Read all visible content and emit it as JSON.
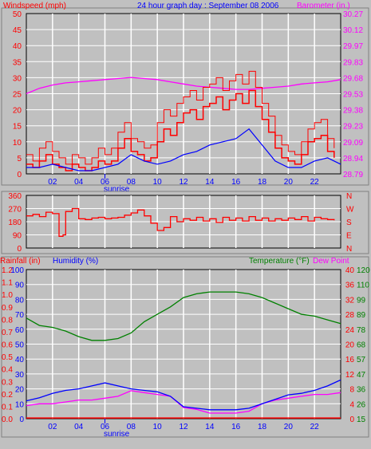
{
  "colors": {
    "background": "#c0c0c0",
    "plot_bg": "#c0c0c0",
    "grid": "#ffffff",
    "wind": "#ff0000",
    "gust": "#ff0000",
    "wind_avg": "#0000ff",
    "barometer": "#ff00ff",
    "direction": "#ff0000",
    "rain": "#ff0000",
    "humidity": "#0000ff",
    "temperature": "#008000",
    "dewpoint": "#ff00ff",
    "sunrise": "#0000ff"
  },
  "chart_data": [
    {
      "type": "line",
      "title": "24 hour graph day : September 08 2006",
      "left_axis_label": "Windspeed (mph)",
      "right_axis_label": "Barometer (in.)",
      "x_ticks": [
        "02",
        "04",
        "06",
        "08",
        "10",
        "12",
        "14",
        "16",
        "18",
        "20",
        "22"
      ],
      "sunrise_label": "sunrise",
      "sunrise_hour": 6,
      "left_ticks": [
        "0",
        "5",
        "10",
        "15",
        "20",
        "25",
        "30",
        "35",
        "40",
        "45",
        "50"
      ],
      "right_ticks": [
        "28.79",
        "28.94",
        "29.09",
        "29.23",
        "29.38",
        "29.53",
        "29.68",
        "29.83",
        "29.97",
        "30.12",
        "30.27"
      ],
      "ylim_left": [
        0,
        50
      ],
      "ylim_right": [
        28.79,
        30.27
      ],
      "xlim": [
        0,
        24
      ],
      "series": [
        {
          "name": "Windspeed (mph)",
          "axis": "left",
          "x": [
            0,
            0.5,
            1,
            1.5,
            2,
            2.5,
            3,
            3.5,
            4,
            4.5,
            5,
            5.5,
            6,
            6.5,
            7,
            7.5,
            8,
            8.5,
            9,
            9.5,
            10,
            10.5,
            11,
            11.5,
            12,
            12.5,
            13,
            13.5,
            14,
            14.5,
            15,
            15.5,
            16,
            16.5,
            17,
            17.5,
            18,
            18.5,
            19,
            19.5,
            20,
            20.5,
            21,
            21.5,
            22,
            22.5,
            23,
            23.5
          ],
          "values": [
            3,
            2,
            4,
            6,
            3,
            2,
            1,
            3,
            2,
            1,
            2,
            4,
            3,
            4,
            8,
            11,
            7,
            6,
            4,
            5,
            10,
            14,
            12,
            16,
            19,
            20,
            17,
            21,
            22,
            24,
            20,
            23,
            25,
            22,
            26,
            21,
            17,
            13,
            8,
            5,
            4,
            3,
            6,
            10,
            11,
            12,
            7,
            5
          ],
          "gust_values": [
            6,
            4,
            8,
            10,
            7,
            5,
            3,
            6,
            5,
            3,
            5,
            8,
            6,
            8,
            13,
            16,
            11,
            10,
            8,
            9,
            16,
            20,
            18,
            22,
            24,
            26,
            23,
            27,
            28,
            30,
            26,
            29,
            31,
            28,
            32,
            27,
            22,
            18,
            12,
            9,
            7,
            6,
            10,
            14,
            16,
            17,
            11,
            8
          ]
        },
        {
          "name": "Wind avg",
          "axis": "left",
          "x": [
            0,
            1,
            2,
            3,
            4,
            5,
            6,
            7,
            8,
            9,
            10,
            11,
            12,
            13,
            14,
            15,
            16,
            17,
            18,
            19,
            20,
            21,
            22,
            23,
            24
          ],
          "values": [
            2,
            2,
            3,
            2,
            1,
            1,
            2,
            3,
            6,
            4,
            3,
            4,
            6,
            7,
            9,
            10,
            11,
            14,
            9,
            4,
            2,
            2,
            4,
            5,
            3
          ]
        },
        {
          "name": "Barometer (in.)",
          "axis": "right",
          "x": [
            0,
            1,
            2,
            3,
            4,
            5,
            6,
            7,
            8,
            9,
            10,
            11,
            12,
            13,
            14,
            15,
            16,
            17,
            18,
            19,
            20,
            21,
            22,
            23,
            24
          ],
          "values": [
            29.53,
            29.58,
            29.61,
            29.63,
            29.64,
            29.65,
            29.66,
            29.67,
            29.68,
            29.67,
            29.66,
            29.64,
            29.62,
            29.6,
            29.59,
            29.58,
            29.57,
            29.57,
            29.58,
            29.59,
            29.6,
            29.62,
            29.63,
            29.64,
            29.66
          ]
        }
      ]
    },
    {
      "type": "line",
      "left_ticks": [
        "0",
        "90",
        "180",
        "270",
        "360"
      ],
      "right_ticks": [
        "N",
        "E",
        "S",
        "W",
        "N"
      ],
      "ylim": [
        0,
        360
      ],
      "xlim": [
        0,
        24
      ],
      "series": [
        {
          "name": "Wind direction",
          "x": [
            0,
            0.5,
            1,
            1.5,
            2,
            2.5,
            2.8,
            3,
            3.5,
            4,
            4.5,
            5,
            5.5,
            6,
            6.5,
            7,
            7.5,
            8,
            8.5,
            9,
            9.5,
            10,
            10.5,
            11,
            11.5,
            12,
            12.5,
            13,
            13.5,
            14,
            14.5,
            15,
            15.5,
            16,
            16.5,
            17,
            17.5,
            18,
            18.5,
            19,
            19.5,
            20,
            20.5,
            21,
            21.5,
            22,
            22.5,
            23,
            23.5
          ],
          "values": [
            220,
            230,
            215,
            245,
            235,
            80,
            90,
            250,
            270,
            200,
            195,
            205,
            210,
            200,
            205,
            210,
            225,
            240,
            260,
            220,
            170,
            120,
            140,
            215,
            180,
            200,
            190,
            210,
            185,
            200,
            175,
            210,
            190,
            205,
            185,
            215,
            190,
            205,
            185,
            200,
            190,
            205,
            195,
            215,
            185,
            210,
            200,
            195,
            190
          ]
        }
      ]
    },
    {
      "type": "line",
      "left_axis_label_1": "Rainfall (in)",
      "left_axis_label_2": "Humidity (%)",
      "right_axis_label_1": "Temperature (°F)",
      "right_axis_label_2": "Dew Point",
      "x_ticks": [
        "02",
        "04",
        "06",
        "08",
        "10",
        "12",
        "14",
        "16",
        "18",
        "20",
        "22"
      ],
      "sunrise_label": "sunrise",
      "sunrise_hour": 6,
      "rain_ticks": [
        "0.0",
        "0.1",
        "0.2",
        "0.3",
        "0.4",
        "0.5",
        "0.6",
        "0.7",
        "0.8",
        "0.9",
        "1.0",
        "1.1",
        "1.2"
      ],
      "humidity_ticks": [
        "0",
        "10",
        "20",
        "30",
        "40",
        "50",
        "60",
        "70",
        "80",
        "90",
        "100"
      ],
      "celsius_ticks": [
        "0",
        "4",
        "8",
        "12",
        "16",
        "20",
        "24",
        "28",
        "32",
        "36",
        "40"
      ],
      "fahrenheit_ticks": [
        "15",
        "26",
        "36",
        "47",
        "57",
        "68",
        "78",
        "89",
        "99",
        "110",
        "120"
      ],
      "ylim_humidity": [
        0,
        100
      ],
      "ylim_celsius": [
        0,
        40
      ],
      "xlim": [
        0,
        24
      ],
      "series": [
        {
          "name": "Rainfall (in)",
          "axis": "humidity",
          "x": [
            0,
            24
          ],
          "values": [
            0.5,
            0.5
          ]
        },
        {
          "name": "Humidity (%)",
          "axis": "humidity",
          "x": [
            0,
            1,
            2,
            3,
            4,
            5,
            6,
            7,
            8,
            9,
            10,
            11,
            12,
            13,
            14,
            15,
            16,
            17,
            18,
            19,
            20,
            21,
            22,
            23,
            24
          ],
          "values": [
            12,
            14,
            17,
            19,
            20,
            22,
            24,
            22,
            20,
            19,
            18,
            15,
            8,
            7,
            6,
            6,
            6,
            7,
            10,
            13,
            16,
            17,
            19,
            22,
            26
          ]
        },
        {
          "name": "Temperature (°F)",
          "axis": "celsius",
          "x": [
            0,
            1,
            2,
            3,
            4,
            5,
            6,
            7,
            8,
            9,
            10,
            11,
            12,
            13,
            14,
            15,
            16,
            17,
            18,
            19,
            20,
            21,
            22,
            23,
            24
          ],
          "values": [
            27,
            25,
            24.5,
            23.5,
            22,
            21,
            21,
            21.5,
            23,
            26,
            28,
            30,
            32.5,
            33.5,
            34,
            34,
            34,
            33.5,
            32.5,
            31,
            29.5,
            28,
            27.5,
            26.5,
            25.5
          ]
        },
        {
          "name": "Dew Point",
          "axis": "celsius",
          "x": [
            0,
            1,
            2,
            3,
            4,
            5,
            6,
            7,
            8,
            9,
            10,
            11,
            12,
            13,
            14,
            15,
            16,
            17,
            18,
            19,
            20,
            21,
            22,
            23,
            24
          ],
          "values": [
            3.5,
            4,
            4,
            4.5,
            5,
            5,
            5.5,
            6,
            7.5,
            7,
            6.5,
            6,
            3,
            2.5,
            1.5,
            1.5,
            1.5,
            2,
            4,
            5,
            5.5,
            6,
            6.5,
            6.5,
            7
          ]
        }
      ]
    }
  ]
}
